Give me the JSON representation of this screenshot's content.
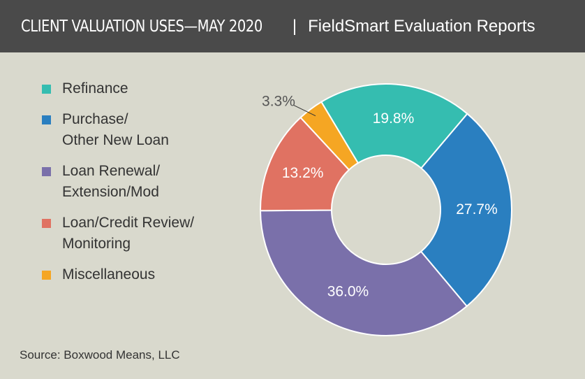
{
  "chart_data": {
    "type": "donut",
    "title": "CLIENT VALUATION USES—MAY 2020",
    "separator": "|",
    "subtitle": "FieldSmart Evaluation Reports",
    "categories": [
      "Refinance",
      "Purchase/\nOther New Loan",
      "Loan Renewal/\nExtension/Mod",
      "Loan/Credit Review/\nMonitoring",
      "Miscellaneous"
    ],
    "values": [
      19.8,
      27.7,
      36.0,
      13.2,
      3.3
    ],
    "value_labels": [
      "19.8%",
      "27.7%",
      "36.0%",
      "13.2%",
      "3.3%"
    ],
    "colors": [
      "#35bdb0",
      "#2a7fc0",
      "#7a70aa",
      "#e07262",
      "#f5a623"
    ],
    "source": "Source: Boxwood Means, LLC"
  }
}
